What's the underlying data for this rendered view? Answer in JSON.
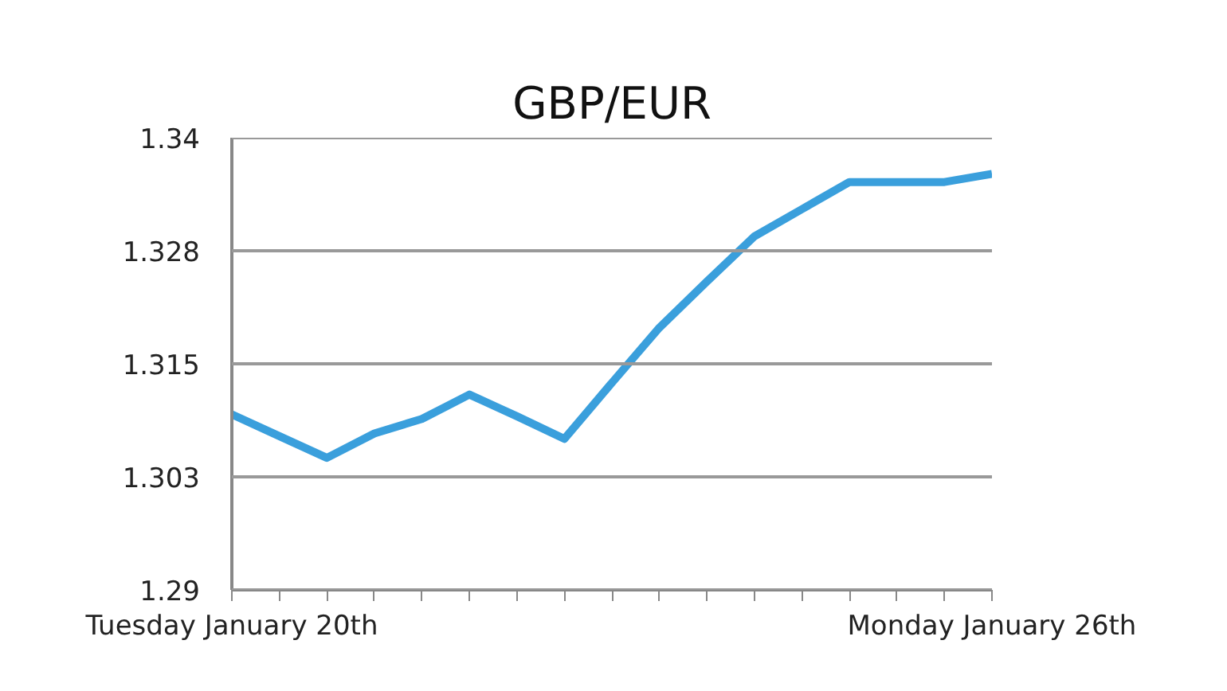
{
  "chart_data": {
    "type": "line",
    "title": "GBP/EUR",
    "categories": [
      "Tuesday January 20th",
      null,
      null,
      null,
      null,
      null,
      null,
      null,
      null,
      null,
      null,
      null,
      null,
      null,
      null,
      null,
      "Monday January 26th"
    ],
    "series": [
      {
        "color": "#3a9fdc",
        "values": [
          1.3094,
          1.307,
          1.3046,
          1.3073,
          1.3089,
          1.3116,
          1.3092,
          1.3067,
          1.3129,
          1.319,
          1.3241,
          1.3291,
          1.3321,
          1.3351,
          1.3351,
          1.3351,
          1.336
        ]
      }
    ],
    "ylim": [
      1.29,
      1.34
    ],
    "yticks": [
      1.29,
      {
        "value": 1.3025,
        "label": "1.303"
      },
      1.315,
      {
        "value": 1.3275,
        "label": "1.328"
      },
      1.34
    ],
    "grid": "y",
    "marker": "none",
    "line_style": "solid"
  }
}
